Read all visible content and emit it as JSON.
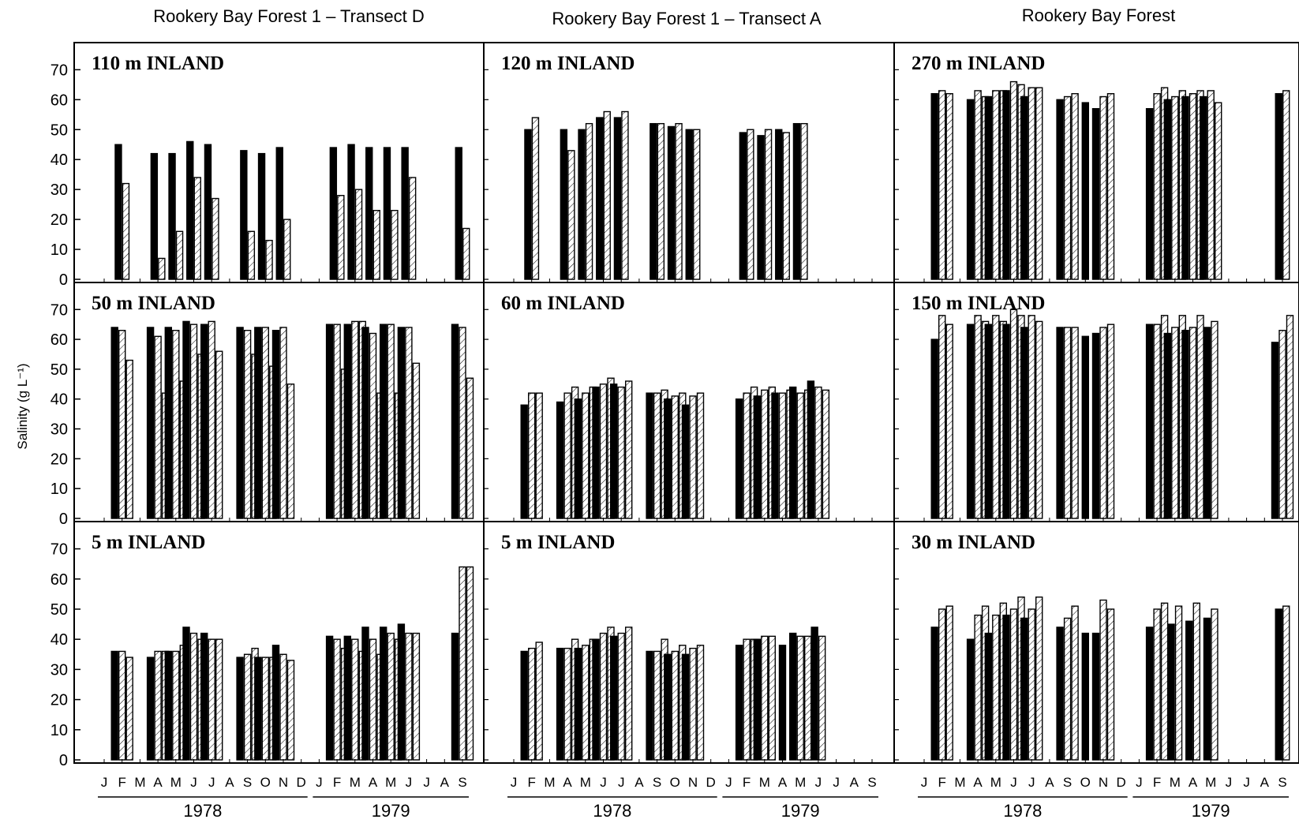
{
  "figure": {
    "ylabel": "Salinity (g L⁻¹)",
    "yticks": [
      0,
      10,
      20,
      30,
      40,
      50,
      60,
      70
    ],
    "months_1978": [
      "J",
      "F",
      "M",
      "A",
      "M",
      "J",
      "J",
      "A",
      "S",
      "O",
      "N",
      "D"
    ],
    "months_1979": [
      "J",
      "F",
      "M",
      "A",
      "M",
      "J",
      "J",
      "A",
      "S"
    ],
    "year_labels": [
      "1978",
      "1979"
    ],
    "colors": {
      "solid": "#000000",
      "hatch": "#000000",
      "background": "#ffffff"
    }
  },
  "chart_data": [
    {
      "type": "bar",
      "column": 0,
      "row": 0,
      "column_title": "Rookery Bay Forest 1 – Transect D",
      "panel_label": "110 m INLAND",
      "ylim": [
        0,
        78
      ],
      "series_styles": [
        "solid",
        "hatched"
      ],
      "groups": [
        {
          "month": 1,
          "values": [
            45,
            32
          ]
        },
        {
          "month": 3,
          "values": [
            42,
            7
          ]
        },
        {
          "month": 4,
          "values": [
            42,
            16
          ]
        },
        {
          "month": 5,
          "values": [
            46,
            34
          ]
        },
        {
          "month": 6,
          "values": [
            45,
            27
          ]
        },
        {
          "month": 8,
          "values": [
            43,
            16
          ]
        },
        {
          "month": 9,
          "values": [
            42,
            13
          ]
        },
        {
          "month": 10,
          "values": [
            44,
            20
          ]
        },
        {
          "month": 13,
          "values": [
            44,
            28
          ]
        },
        {
          "month": 14,
          "values": [
            45,
            30
          ]
        },
        {
          "month": 15,
          "values": [
            44,
            23
          ]
        },
        {
          "month": 16,
          "values": [
            44,
            23
          ]
        },
        {
          "month": 17,
          "values": [
            44,
            34
          ]
        },
        {
          "month": 20,
          "values": [
            44,
            17
          ]
        }
      ]
    },
    {
      "type": "bar",
      "column": 0,
      "row": 1,
      "panel_label": "50 m INLAND",
      "ylim": [
        0,
        78
      ],
      "series_styles": [
        "solid",
        "hatched",
        "hatched"
      ],
      "groups": [
        {
          "month": 1,
          "values": [
            64,
            63,
            53
          ]
        },
        {
          "month": 3,
          "values": [
            64,
            61,
            42
          ]
        },
        {
          "month": 4,
          "values": [
            64,
            63,
            46
          ]
        },
        {
          "month": 5,
          "values": [
            66,
            65,
            55
          ]
        },
        {
          "month": 6,
          "values": [
            65,
            66,
            56
          ]
        },
        {
          "month": 8,
          "values": [
            64,
            63,
            55
          ]
        },
        {
          "month": 9,
          "values": [
            64,
            64,
            51
          ]
        },
        {
          "month": 10,
          "values": [
            63,
            64,
            45
          ]
        },
        {
          "month": 13,
          "values": [
            65,
            65,
            50
          ]
        },
        {
          "month": 14,
          "values": [
            65,
            66,
            66
          ]
        },
        {
          "month": 15,
          "values": [
            64,
            62,
            42
          ]
        },
        {
          "month": 16,
          "values": [
            65,
            65,
            42
          ]
        },
        {
          "month": 17,
          "values": [
            64,
            64,
            52
          ]
        },
        {
          "month": 20,
          "values": [
            65,
            64,
            47
          ]
        }
      ]
    },
    {
      "type": "bar",
      "column": 0,
      "row": 2,
      "panel_label": "5 m INLAND",
      "ylim": [
        0,
        78
      ],
      "series_styles": [
        "solid",
        "hatched",
        "hatched"
      ],
      "groups": [
        {
          "month": 1,
          "values": [
            36,
            36,
            34
          ]
        },
        {
          "month": 3,
          "values": [
            34,
            36,
            36
          ]
        },
        {
          "month": 4,
          "values": [
            36,
            36,
            38
          ]
        },
        {
          "month": 5,
          "values": [
            44,
            42,
            40
          ]
        },
        {
          "month": 6,
          "values": [
            42,
            40,
            40
          ]
        },
        {
          "month": 8,
          "values": [
            34,
            35,
            37
          ]
        },
        {
          "month": 9,
          "values": [
            34,
            34,
            34
          ]
        },
        {
          "month": 10,
          "values": [
            38,
            35,
            33
          ]
        },
        {
          "month": 13,
          "values": [
            41,
            40,
            37
          ]
        },
        {
          "month": 14,
          "values": [
            41,
            40,
            36
          ]
        },
        {
          "month": 15,
          "values": [
            44,
            40,
            35
          ]
        },
        {
          "month": 16,
          "values": [
            44,
            42,
            40
          ]
        },
        {
          "month": 17,
          "values": [
            45,
            42,
            42
          ]
        },
        {
          "month": 20,
          "values": [
            42,
            64,
            64
          ]
        }
      ]
    },
    {
      "type": "bar",
      "column": 1,
      "row": 0,
      "column_title": "Rookery Bay Forest 1 – Transect A",
      "panel_label": "120 m INLAND",
      "ylim": [
        0,
        78
      ],
      "series_styles": [
        "solid",
        "hatched"
      ],
      "groups": [
        {
          "month": 1,
          "values": [
            50,
            54
          ]
        },
        {
          "month": 3,
          "values": [
            50,
            43
          ]
        },
        {
          "month": 4,
          "values": [
            50,
            52
          ]
        },
        {
          "month": 5,
          "values": [
            54,
            56
          ]
        },
        {
          "month": 6,
          "values": [
            54,
            56
          ]
        },
        {
          "month": 8,
          "values": [
            52,
            52
          ]
        },
        {
          "month": 9,
          "values": [
            51,
            52
          ]
        },
        {
          "month": 10,
          "values": [
            50,
            50
          ]
        },
        {
          "month": 13,
          "values": [
            49,
            50
          ]
        },
        {
          "month": 14,
          "values": [
            48,
            50
          ]
        },
        {
          "month": 15,
          "values": [
            50,
            49
          ]
        },
        {
          "month": 16,
          "values": [
            52,
            52
          ]
        }
      ]
    },
    {
      "type": "bar",
      "column": 1,
      "row": 1,
      "panel_label": "60 m INLAND",
      "ylim": [
        0,
        78
      ],
      "series_styles": [
        "solid",
        "hatched",
        "hatched"
      ],
      "groups": [
        {
          "month": 1,
          "values": [
            38,
            42,
            42
          ]
        },
        {
          "month": 3,
          "values": [
            39,
            42,
            44
          ]
        },
        {
          "month": 4,
          "values": [
            40,
            42,
            44
          ]
        },
        {
          "month": 5,
          "values": [
            44,
            45,
            47
          ]
        },
        {
          "month": 6,
          "values": [
            45,
            44,
            46
          ]
        },
        {
          "month": 8,
          "values": [
            42,
            42,
            43
          ]
        },
        {
          "month": 9,
          "values": [
            40,
            41,
            42
          ]
        },
        {
          "month": 10,
          "values": [
            38,
            41,
            42
          ]
        },
        {
          "month": 13,
          "values": [
            40,
            42,
            44
          ]
        },
        {
          "month": 14,
          "values": [
            41,
            43,
            44
          ]
        },
        {
          "month": 15,
          "values": [
            42,
            42,
            43
          ]
        },
        {
          "month": 16,
          "values": [
            44,
            42,
            43
          ]
        },
        {
          "month": 17,
          "values": [
            46,
            44,
            43
          ]
        }
      ]
    },
    {
      "type": "bar",
      "column": 1,
      "row": 2,
      "panel_label": "5 m INLAND",
      "ylim": [
        0,
        78
      ],
      "series_styles": [
        "solid",
        "hatched",
        "hatched"
      ],
      "groups": [
        {
          "month": 1,
          "values": [
            36,
            37,
            39
          ]
        },
        {
          "month": 3,
          "values": [
            37,
            37,
            40
          ]
        },
        {
          "month": 4,
          "values": [
            37,
            38,
            40
          ]
        },
        {
          "month": 5,
          "values": [
            40,
            42,
            44
          ]
        },
        {
          "month": 6,
          "values": [
            41,
            42,
            44
          ]
        },
        {
          "month": 8,
          "values": [
            36,
            36,
            40
          ]
        },
        {
          "month": 9,
          "values": [
            35,
            36,
            38
          ]
        },
        {
          "month": 10,
          "values": [
            35,
            37,
            38
          ]
        },
        {
          "month": 13,
          "values": [
            38,
            40,
            40
          ]
        },
        {
          "month": 14,
          "values": [
            40,
            41,
            41
          ]
        },
        {
          "month": 15,
          "values": [
            38
          ]
        },
        {
          "month": 16,
          "values": [
            42,
            41,
            41
          ]
        },
        {
          "month": 17,
          "values": [
            44,
            41
          ]
        }
      ]
    },
    {
      "type": "bar",
      "column": 2,
      "row": 0,
      "column_title": "Rookery Bay Forest",
      "panel_label": "270 m INLAND",
      "ylim": [
        0,
        78
      ],
      "series_styles": [
        "solid",
        "hatched",
        "hatched"
      ],
      "groups": [
        {
          "month": 1,
          "values": [
            62,
            63,
            62
          ]
        },
        {
          "month": 3,
          "values": [
            60,
            63,
            61
          ]
        },
        {
          "month": 4,
          "values": [
            61,
            63,
            63
          ]
        },
        {
          "month": 5,
          "values": [
            63,
            66,
            65
          ]
        },
        {
          "month": 6,
          "values": [
            61,
            64,
            64
          ]
        },
        {
          "month": 8,
          "values": [
            60,
            61,
            62
          ]
        },
        {
          "month": 9,
          "values": [
            59
          ]
        },
        {
          "month": 10,
          "values": [
            57,
            61,
            62
          ]
        },
        {
          "month": 13,
          "values": [
            57,
            62,
            64
          ]
        },
        {
          "month": 14,
          "values": [
            60,
            61,
            63
          ]
        },
        {
          "month": 15,
          "values": [
            61,
            62,
            63
          ]
        },
        {
          "month": 16,
          "values": [
            61,
            63,
            59
          ]
        },
        {
          "month": 20,
          "values": [
            62,
            63
          ]
        }
      ]
    },
    {
      "type": "bar",
      "column": 2,
      "row": 1,
      "panel_label": "150 m INLAND",
      "ylim": [
        0,
        78
      ],
      "series_styles": [
        "solid",
        "hatched",
        "hatched"
      ],
      "groups": [
        {
          "month": 1,
          "values": [
            60,
            68,
            65
          ]
        },
        {
          "month": 3,
          "values": [
            65,
            68,
            66
          ]
        },
        {
          "month": 4,
          "values": [
            65,
            68,
            66
          ]
        },
        {
          "month": 5,
          "values": [
            65,
            70,
            68
          ]
        },
        {
          "month": 6,
          "values": [
            64,
            68,
            66
          ]
        },
        {
          "month": 8,
          "values": [
            64,
            64,
            64
          ]
        },
        {
          "month": 9,
          "values": [
            61
          ]
        },
        {
          "month": 10,
          "values": [
            62,
            64,
            65
          ]
        },
        {
          "month": 13,
          "values": [
            65,
            65,
            68
          ]
        },
        {
          "month": 14,
          "values": [
            62,
            64,
            68
          ]
        },
        {
          "month": 15,
          "values": [
            63,
            64,
            68
          ]
        },
        {
          "month": 16,
          "values": [
            64,
            66
          ]
        },
        {
          "month": 20,
          "values": [
            59,
            63,
            68
          ]
        }
      ]
    },
    {
      "type": "bar",
      "column": 2,
      "row": 2,
      "panel_label": "30 m INLAND",
      "ylim": [
        0,
        78
      ],
      "series_styles": [
        "solid",
        "hatched",
        "hatched"
      ],
      "groups": [
        {
          "month": 1,
          "values": [
            44,
            50,
            51
          ]
        },
        {
          "month": 3,
          "values": [
            40,
            48,
            51
          ]
        },
        {
          "month": 4,
          "values": [
            42,
            48,
            52
          ]
        },
        {
          "month": 5,
          "values": [
            48,
            50,
            54
          ]
        },
        {
          "month": 6,
          "values": [
            47,
            50,
            54
          ]
        },
        {
          "month": 8,
          "values": [
            44,
            47,
            51
          ]
        },
        {
          "month": 9,
          "values": [
            42
          ]
        },
        {
          "month": 10,
          "values": [
            42,
            53,
            50
          ]
        },
        {
          "month": 13,
          "values": [
            44,
            50,
            52
          ]
        },
        {
          "month": 14,
          "values": [
            45,
            51
          ]
        },
        {
          "month": 15,
          "values": [
            46,
            52
          ]
        },
        {
          "month": 16,
          "values": [
            47,
            50
          ]
        },
        {
          "month": 20,
          "values": [
            50,
            51
          ]
        }
      ]
    }
  ]
}
